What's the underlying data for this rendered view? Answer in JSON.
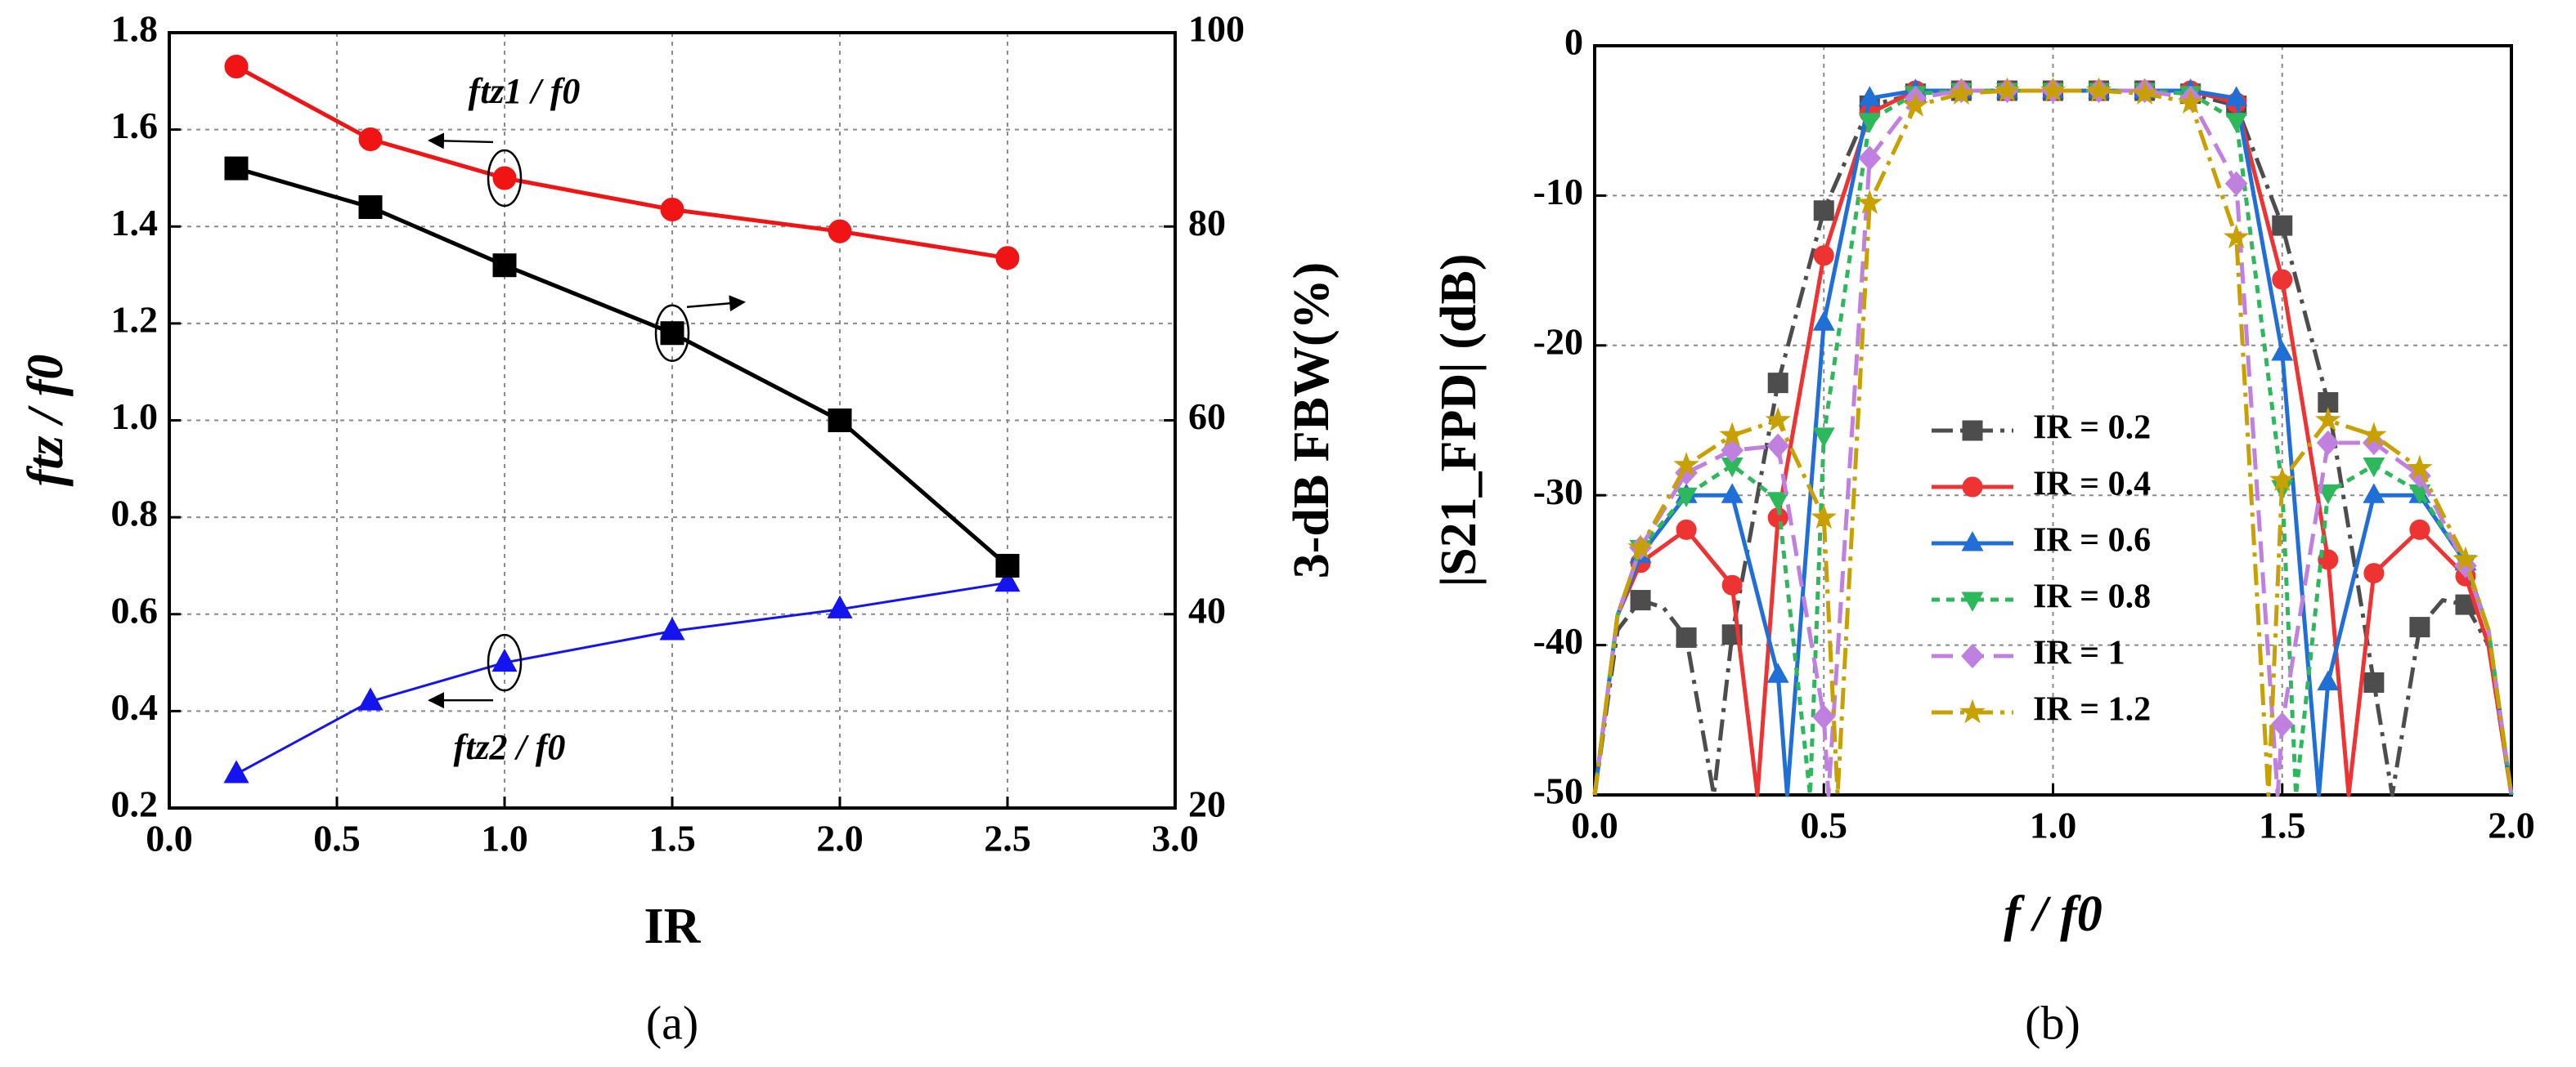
{
  "chart_data": [
    {
      "type": "line",
      "xlabel": "IR",
      "ylabel": "ftz / f0",
      "y2label": "3-dB FBW(%)",
      "caption": "(a)",
      "xlim": [
        0,
        3
      ],
      "xticks": [
        {
          "value": 0,
          "label": "0.0"
        },
        0.5,
        {
          "value": 1,
          "label": "1.0"
        },
        1.5,
        {
          "value": 2,
          "label": "2.0"
        },
        2.5,
        {
          "value": 3,
          "label": "3.0"
        }
      ],
      "ylim": [
        0.2,
        1.8
      ],
      "yticks": [
        0.2,
        0.4,
        0.6,
        0.8,
        {
          "value": 1,
          "label": "1.0"
        },
        1.2,
        1.4,
        1.6,
        1.8
      ],
      "y2lim": [
        20,
        100
      ],
      "y2ticks": [
        20,
        40,
        60,
        80,
        100
      ],
      "grid": true,
      "x": [
        0.2,
        0.6,
        1,
        1.5,
        2,
        2.5
      ],
      "series": [
        {
          "name": "ftz1 / f0",
          "color": "#f01414",
          "marker": "circle",
          "linestyle": "solid",
          "values": [
            1.73,
            1.58,
            1.5,
            1.435,
            1.39,
            1.335
          ]
        },
        {
          "name": "ftz2 / f0",
          "color": "#1414f0",
          "marker": "triangle-up",
          "linestyle": "solid",
          "values": [
            0.27,
            0.42,
            0.5,
            0.565,
            0.61,
            0.665
          ]
        },
        {
          "color": "#000000",
          "marker": "square",
          "linestyle": "solid",
          "axis": "y2",
          "values": [
            86,
            82,
            76,
            69,
            60,
            45
          ]
        }
      ]
    },
    {
      "type": "line",
      "xlabel": "f / f0",
      "ylabel": "|S21_FPD| (dB)",
      "caption": "(b)",
      "xlim": [
        0,
        2
      ],
      "xticks": [
        {
          "value": 0,
          "label": "0.0"
        },
        0.5,
        {
          "value": 1,
          "label": "1.0"
        },
        1.5,
        {
          "value": 2,
          "label": "2.0"
        }
      ],
      "ylim": [
        -50,
        0
      ],
      "yticks": [
        -50,
        -40,
        -30,
        -20,
        -10,
        0
      ],
      "grid": true,
      "legend": "center",
      "series": [
        {
          "name": "IR = 0.2",
          "color": "#4d4d4d",
          "marker": "square",
          "linestyle": "dashdot",
          "x": [
            0,
            0.05,
            0.1,
            0.15,
            0.2,
            0.26,
            0.3,
            0.4,
            0.5,
            0.6,
            0.7,
            0.8,
            0.9,
            1,
            1.1,
            1.2,
            1.3,
            1.4,
            1.5,
            1.6,
            1.7,
            1.74,
            1.8,
            1.85,
            1.9,
            1.95,
            2
          ],
          "values": [
            -50,
            -39,
            -37,
            -37.5,
            -39.5,
            -50,
            -39.3,
            -22.5,
            -11,
            -4,
            -3.2,
            -3,
            -3,
            -3,
            -3,
            -3,
            -3.2,
            -4,
            -12,
            -23.8,
            -42.5,
            -50,
            -38.8,
            -37,
            -37.3,
            -40,
            -50
          ]
        },
        {
          "name": "IR = 0.4",
          "color": "#ee3333",
          "marker": "circle",
          "linestyle": "solid",
          "x": [
            0,
            0.05,
            0.1,
            0.2,
            0.3,
            0.355,
            0.4,
            0.5,
            0.6,
            0.7,
            0.8,
            0.9,
            1,
            1.1,
            1.2,
            1.3,
            1.4,
            1.5,
            1.6,
            1.645,
            1.7,
            1.8,
            1.9,
            1.95,
            2
          ],
          "values": [
            -50,
            -38,
            -34.5,
            -32.3,
            -36,
            -50,
            -31.5,
            -14,
            -4.5,
            -3,
            -3,
            -3,
            -3,
            -3,
            -3,
            -3,
            -3.8,
            -15.6,
            -34.3,
            -50,
            -35.2,
            -32.3,
            -35.4,
            -40,
            -50
          ]
        },
        {
          "name": "IR = 0.6",
          "color": "#1f6fd6",
          "marker": "triangle-up",
          "linestyle": "solid",
          "x": [
            0,
            0.05,
            0.1,
            0.2,
            0.3,
            0.4,
            0.42,
            0.5,
            0.6,
            0.7,
            0.8,
            0.9,
            1,
            1.1,
            1.2,
            1.3,
            1.4,
            1.5,
            1.58,
            1.6,
            1.7,
            1.8,
            1.9,
            1.95,
            2
          ],
          "values": [
            -50,
            -38,
            -34,
            -30,
            -30,
            -42,
            -50,
            -18.5,
            -3.5,
            -3,
            -3,
            -3,
            -3,
            -3,
            -3,
            -3,
            -3.5,
            -20.5,
            -50,
            -42.5,
            -30,
            -30,
            -34.5,
            -39,
            -50
          ]
        },
        {
          "name": "IR = 0.8",
          "color": "#2eb85c",
          "marker": "triangle-down",
          "linestyle": "dot",
          "x": [
            0,
            0.05,
            0.1,
            0.2,
            0.3,
            0.4,
            0.47,
            0.5,
            0.6,
            0.7,
            0.8,
            0.9,
            1,
            1.1,
            1.2,
            1.3,
            1.4,
            1.5,
            1.53,
            1.6,
            1.7,
            1.8,
            1.9,
            1.95,
            2
          ],
          "values": [
            -50,
            -38,
            -33.5,
            -30,
            -28,
            -30.3,
            -50,
            -26,
            -5,
            -3.2,
            -3,
            -3,
            -3,
            -3,
            -3,
            -3.2,
            -5,
            -29.5,
            -50,
            -29.8,
            -28,
            -29.8,
            -34.5,
            -39,
            -50
          ]
        },
        {
          "name": "IR = 1",
          "color": "#c080e0",
          "marker": "diamond",
          "linestyle": "dash",
          "x": [
            0,
            0.05,
            0.1,
            0.2,
            0.3,
            0.4,
            0.5,
            0.51,
            0.6,
            0.7,
            0.8,
            0.9,
            1,
            1.1,
            1.2,
            1.3,
            1.4,
            1.49,
            1.5,
            1.6,
            1.7,
            1.8,
            1.9,
            1.95,
            2
          ],
          "values": [
            -50,
            -38,
            -33.5,
            -28.5,
            -27,
            -26.7,
            -44.8,
            -50,
            -7.5,
            -3.5,
            -3,
            -3,
            -3,
            -3,
            -3,
            -3.5,
            -9.2,
            -50,
            -45.3,
            -26.5,
            -26.5,
            -28.7,
            -34.7,
            -39,
            -50
          ]
        },
        {
          "name": "IR = 1.2",
          "color": "#c8a000",
          "marker": "star",
          "linestyle": "dashdot",
          "x": [
            0,
            0.05,
            0.1,
            0.2,
            0.3,
            0.4,
            0.5,
            0.53,
            0.6,
            0.7,
            0.8,
            0.9,
            1,
            1.1,
            1.2,
            1.3,
            1.4,
            1.47,
            1.5,
            1.6,
            1.7,
            1.8,
            1.9,
            1.95,
            2
          ],
          "values": [
            -50,
            -38,
            -33.5,
            -28,
            -26,
            -25,
            -31.5,
            -50,
            -10.5,
            -4,
            -3.2,
            -3,
            -3,
            -3,
            -3.2,
            -3.8,
            -12.8,
            -50,
            -29,
            -25,
            -26,
            -28.2,
            -34.3,
            -39,
            -50
          ]
        }
      ]
    }
  ]
}
